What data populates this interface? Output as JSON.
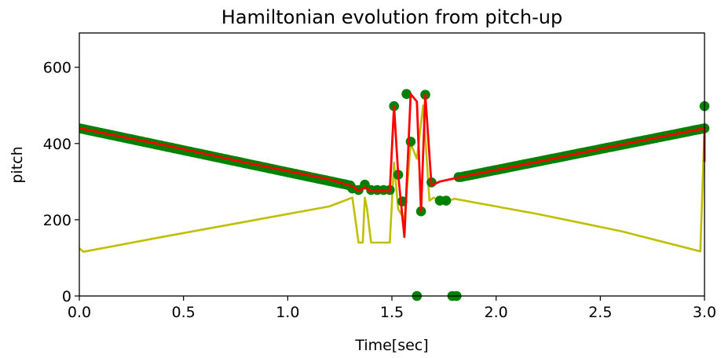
{
  "chart_data": {
    "type": "line",
    "title": "Hamiltonian evolution from pitch-up",
    "xlabel": "Time[sec]",
    "ylabel": "pitch",
    "xlim": [
      0.0,
      3.0
    ],
    "ylim": [
      0,
      690
    ],
    "x_ticks": [
      0.0,
      0.5,
      1.0,
      1.5,
      2.0,
      2.5,
      3.0
    ],
    "x_tick_labels": [
      "0.0",
      "0.5",
      "1.0",
      "1.5",
      "2.0",
      "2.5",
      "3.0"
    ],
    "y_ticks": [
      0,
      200,
      400,
      600
    ],
    "y_tick_labels": [
      "0",
      "200",
      "400",
      "600"
    ],
    "grid": false,
    "colors": {
      "scatter": "#008000",
      "red_line": "#ff0000",
      "yellow_line": "#bfbf00"
    },
    "series": [
      {
        "kind": "scatter",
        "marker": "circle",
        "segments": [
          {
            "x": [
              0.0,
              1.3
            ],
            "y": [
              440,
              290
            ],
            "step": 0.013
          }
        ],
        "x": [
          1.31,
          1.34,
          1.37,
          1.4,
          1.43,
          1.46,
          1.49,
          1.51,
          1.53,
          1.55,
          1.57,
          1.59,
          1.62,
          1.64,
          1.66,
          1.69,
          1.73,
          1.76,
          1.79,
          1.81,
          1.82,
          3.0
        ],
        "y": [
          282,
          278,
          292,
          278,
          278,
          278,
          278,
          498,
          318,
          248,
          530,
          405,
          0,
          222,
          528,
          298,
          250,
          250,
          0,
          0,
          312,
          498
        ],
        "segments_after": [
          {
            "x": [
              1.83,
              3.0
            ],
            "y": [
              312,
              440
            ],
            "step": 0.013
          }
        ]
      },
      {
        "kind": "line",
        "x": [
          0.0,
          0.4,
          0.8,
          1.2,
          1.31,
          1.34,
          1.37,
          1.4,
          1.43,
          1.46,
          1.49,
          1.51,
          1.53,
          1.56,
          1.59,
          1.62,
          1.64,
          1.66,
          1.69,
          1.73,
          1.83,
          2.2,
          2.6,
          3.0,
          3.0
        ],
        "y": [
          440,
          397,
          350,
          306,
          288,
          275,
          285,
          275,
          275,
          275,
          275,
          498,
          318,
          155,
          530,
          510,
          222,
          528,
          290,
          300,
          312,
          352,
          397,
          440,
          352
        ]
      },
      {
        "kind": "line",
        "x": [
          0.0,
          0.02,
          0.4,
          0.8,
          1.2,
          1.31,
          1.32,
          1.34,
          1.36,
          1.37,
          1.38,
          1.4,
          1.49,
          1.51,
          1.53,
          1.56,
          1.59,
          1.62,
          1.65,
          1.68,
          1.7,
          1.73,
          1.76,
          1.8,
          2.2,
          2.6,
          2.98,
          3.0
        ],
        "y": [
          125,
          116,
          155,
          195,
          235,
          258,
          220,
          140,
          140,
          258,
          230,
          140,
          140,
          350,
          228,
          200,
          400,
          360,
          500,
          250,
          258,
          248,
          248,
          255,
          215,
          170,
          117,
          440
        ]
      }
    ]
  }
}
